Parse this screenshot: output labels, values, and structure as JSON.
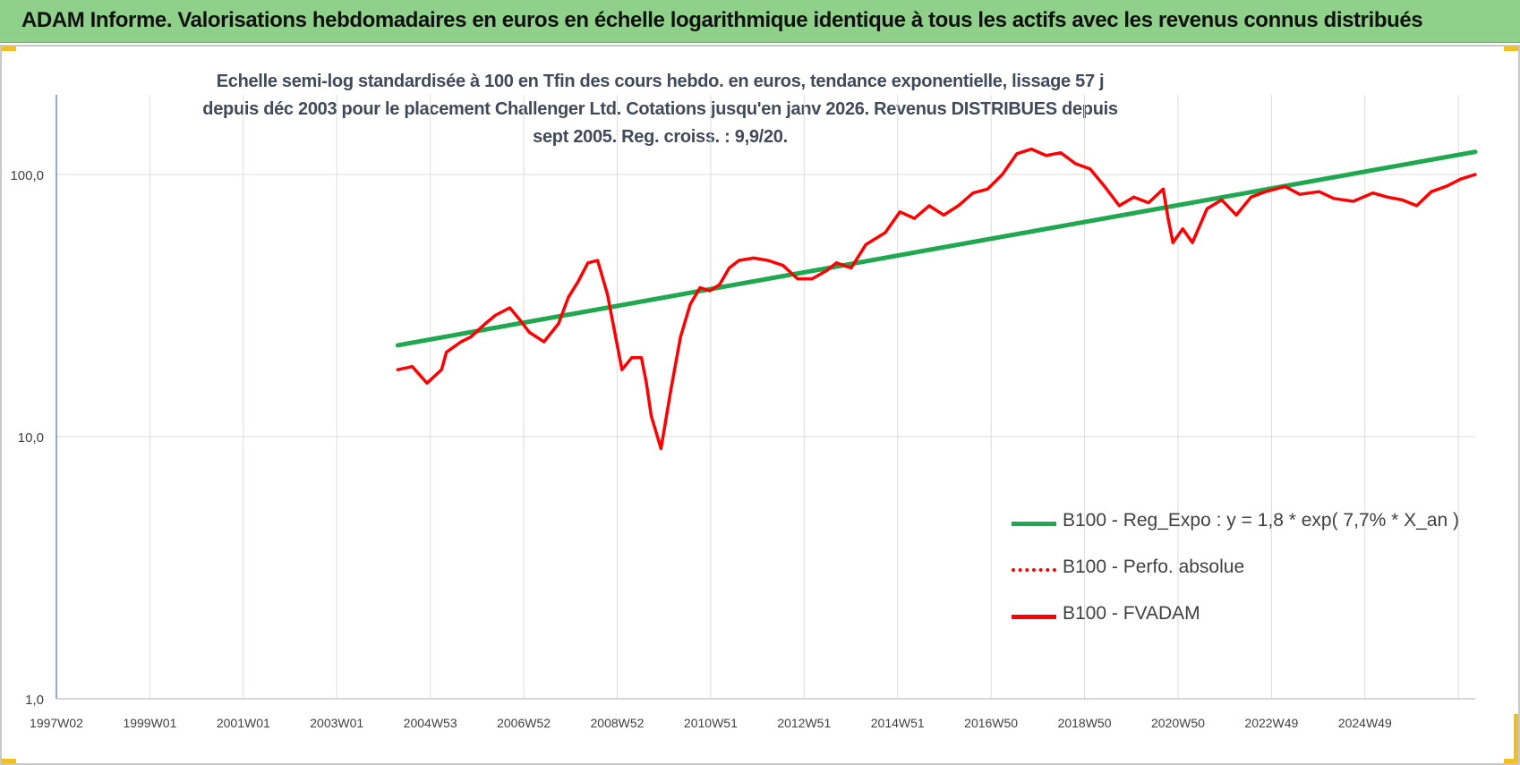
{
  "header": {
    "title": "ADAM Informe. Valorisations hebdomadaires en euros en échelle logarithmique identique à tous les actifs avec les revenus connus distribués"
  },
  "chart_data": {
    "type": "line",
    "title": "Echelle semi-log standardisée à 100 en Tfin des cours hebdo. en euros, tendance exponentielle, lissage 57 j depuis déc 2003 pour le placement Challenger Ltd. Cotations jusqu'en janv 2026. Revenus DISTRIBUES depuis sept 2005. Reg. croiss. : 9,9/20.",
    "y_scale": "log",
    "ylim": [
      1,
      200
    ],
    "y_ticks": [
      "1,0",
      "10,0",
      "100,0"
    ],
    "x_tick_labels": [
      "1997W02",
      "1999W01",
      "2001W01",
      "2003W01",
      "2004W53",
      "2006W52",
      "2008W52",
      "2010W51",
      "2012W51",
      "2014W51",
      "2016W50",
      "2018W50",
      "2020W50",
      "2022W49",
      "2024W49"
    ],
    "xlim": [
      1997.0,
      2026.1
    ],
    "grid": true,
    "legend_position": "bottom-right",
    "series": [
      {
        "name": "B100 - Reg_Expo : y = 1,8 * exp( 7,7% *  X_an )",
        "color": "#1fa84f",
        "style": "solid",
        "x": [
          2004.0,
          2026.1
        ],
        "y": [
          22.3,
          122
        ]
      },
      {
        "name": "B100 - Perfo. absolue",
        "color": "#ff0000",
        "style": "dotted",
        "x": [],
        "y": []
      },
      {
        "name": "B100 - FVADAM",
        "color": "#ff0000",
        "style": "solid",
        "x": [
          2004.0,
          2004.3,
          2004.6,
          2004.9,
          2005.0,
          2005.3,
          2005.5,
          2005.8,
          2006.0,
          2006.3,
          2006.5,
          2006.7,
          2007.0,
          2007.3,
          2007.5,
          2007.7,
          2007.9,
          2008.1,
          2008.3,
          2008.6,
          2008.8,
          2009.0,
          2009.1,
          2009.2,
          2009.4,
          2009.6,
          2009.8,
          2010.0,
          2010.2,
          2010.4,
          2010.6,
          2010.8,
          2011.0,
          2011.3,
          2011.6,
          2011.9,
          2012.2,
          2012.5,
          2012.8,
          2013.0,
          2013.3,
          2013.6,
          2014.0,
          2014.3,
          2014.6,
          2014.9,
          2015.2,
          2015.5,
          2015.8,
          2016.1,
          2016.4,
          2016.7,
          2017.0,
          2017.3,
          2017.6,
          2017.9,
          2018.2,
          2018.5,
          2018.8,
          2019.1,
          2019.4,
          2019.7,
          2019.8,
          2019.9,
          2020.1,
          2020.3,
          2020.6,
          2020.9,
          2021.2,
          2021.5,
          2021.8,
          2022.2,
          2022.5,
          2022.9,
          2023.2,
          2023.6,
          2024.0,
          2024.3,
          2024.6,
          2024.9,
          2025.2,
          2025.5,
          2025.8,
          2026.1
        ],
        "y": [
          18,
          18.5,
          16,
          18,
          21,
          23,
          24,
          27,
          29,
          31,
          28,
          25,
          23,
          27,
          34,
          39,
          46,
          47,
          35,
          18,
          20,
          20,
          16,
          12,
          9,
          15,
          24,
          32,
          37,
          36,
          38,
          44,
          47,
          48,
          47,
          45,
          40,
          40,
          43,
          46,
          44,
          54,
          60,
          72,
          68,
          76,
          70,
          76,
          85,
          88,
          100,
          120,
          125,
          118,
          121,
          110,
          105,
          90,
          76,
          82,
          78,
          88,
          68,
          55,
          62,
          55,
          74,
          80,
          70,
          82,
          86,
          90,
          84,
          86,
          81,
          79,
          85,
          82,
          80,
          76,
          86,
          90,
          96,
          100
        ]
      }
    ]
  }
}
